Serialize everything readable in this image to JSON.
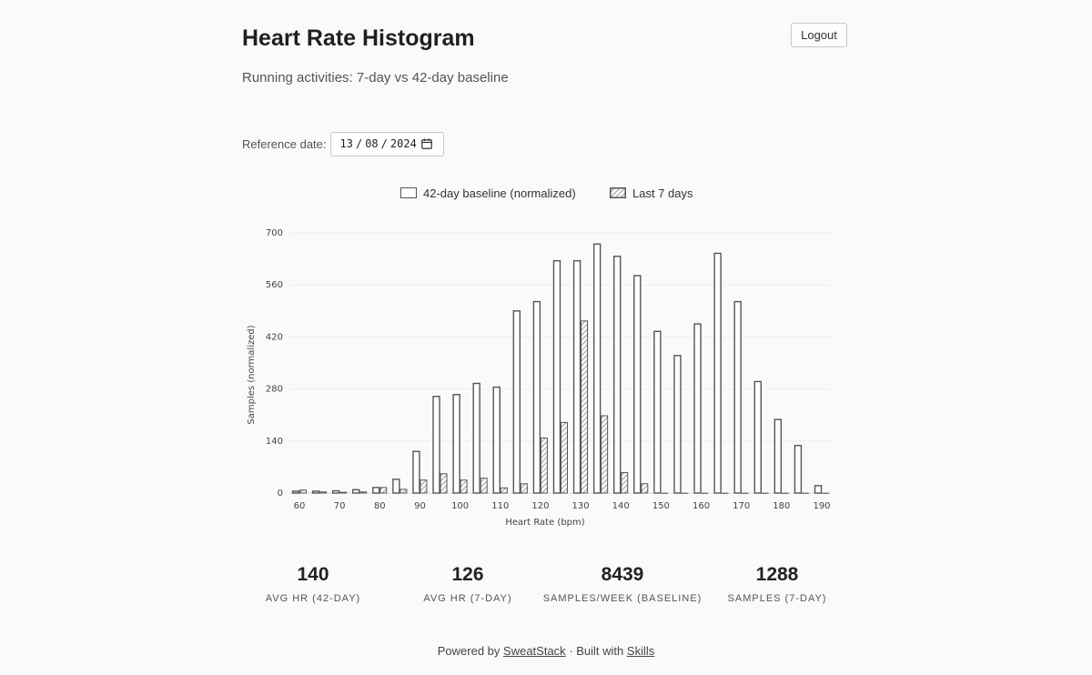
{
  "header": {
    "title": "Heart Rate Histogram",
    "logout_label": "Logout",
    "subtitle": "Running activities: 7-day vs 42-day baseline"
  },
  "controls": {
    "reference_label": "Reference date:",
    "date_day": "13",
    "date_month": "08",
    "date_year": "2024",
    "date_separator": "/"
  },
  "legend": {
    "baseline_label": "42-day baseline (normalized)",
    "recent_label": "Last 7 days"
  },
  "colors": {
    "bar_stroke": "#555555",
    "grid": "#eeeeee",
    "background": "#fafafa"
  },
  "chart_data": {
    "type": "bar",
    "xlabel": "Heart Rate (bpm)",
    "ylabel": "Samples (normalized)",
    "ylim": [
      0,
      700
    ],
    "yticks": [
      0,
      140,
      280,
      420,
      560,
      700
    ],
    "xticks": [
      60,
      70,
      80,
      90,
      100,
      110,
      120,
      130,
      140,
      150,
      160,
      170,
      180,
      190
    ],
    "legend_position": "top-center",
    "categories": [
      60,
      65,
      70,
      75,
      80,
      85,
      90,
      95,
      100,
      105,
      110,
      115,
      120,
      125,
      130,
      135,
      140,
      145,
      150,
      155,
      160,
      165,
      170,
      175,
      180,
      185,
      190
    ],
    "series": [
      {
        "name": "42-day baseline (normalized)",
        "values": [
          5,
          5,
          6,
          9,
          15,
          37,
          112,
          260,
          265,
          295,
          285,
          490,
          515,
          625,
          625,
          670,
          637,
          585,
          435,
          370,
          455,
          645,
          515,
          300,
          198,
          128,
          20
        ]
      },
      {
        "name": "Last 7 days",
        "values": [
          8,
          3,
          2,
          3,
          15,
          10,
          35,
          52,
          35,
          40,
          14,
          25,
          148,
          190,
          463,
          208,
          55,
          25,
          0,
          0,
          0,
          0,
          0,
          0,
          0,
          0,
          0
        ]
      }
    ]
  },
  "stats": [
    {
      "value": "140",
      "label": "AVG HR (42-DAY)"
    },
    {
      "value": "126",
      "label": "AVG HR (7-DAY)"
    },
    {
      "value": "8439",
      "label": "SAMPLES/WEEK (BASELINE)"
    },
    {
      "value": "1288",
      "label": "SAMPLES (7-DAY)"
    }
  ],
  "footer": {
    "powered_by": "Powered by",
    "sweatstack_link": "SweatStack",
    "built_with": "· Built with",
    "skills_link": "Skills"
  }
}
